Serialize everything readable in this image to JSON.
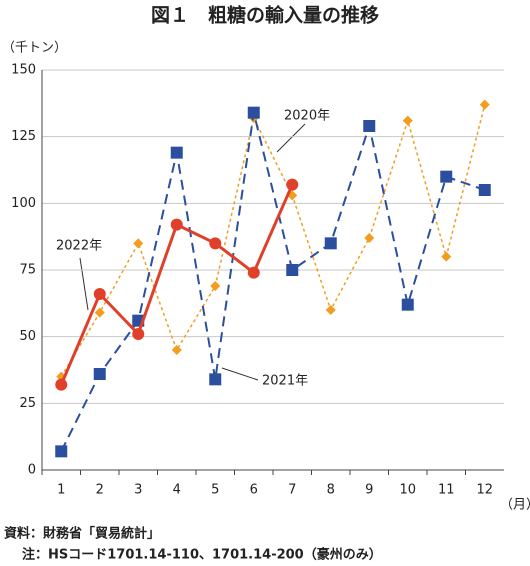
{
  "chart_data": {
    "type": "line",
    "title": "図１　粗糖の輸入量の推移",
    "y_unit": "（千トン）",
    "x_unit": "（月）",
    "categories": [
      1,
      2,
      3,
      4,
      5,
      6,
      7,
      8,
      9,
      10,
      11,
      12
    ],
    "ylim": [
      0,
      150
    ],
    "yticks": [
      0,
      25,
      50,
      75,
      100,
      125,
      150
    ],
    "grid": true,
    "series": [
      {
        "name": "2020年",
        "color": "#f39c1e",
        "style": "dotted",
        "marker": "diamond",
        "values": [
          35,
          59,
          85,
          45,
          69,
          132,
          103,
          60,
          87,
          131,
          80,
          137
        ]
      },
      {
        "name": "2021年",
        "color": "#2b4f9e",
        "style": "dashed",
        "marker": "square",
        "values": [
          7,
          36,
          56,
          119,
          34,
          134,
          75,
          85,
          129,
          62,
          110,
          105
        ]
      },
      {
        "name": "2022年",
        "color": "#e0402a",
        "style": "solid",
        "marker": "circle",
        "values": [
          32,
          66,
          51,
          92,
          85,
          74,
          107,
          null,
          null,
          null,
          null,
          null
        ]
      }
    ],
    "notes": [
      "資料：財務省「貿易統計」",
      "注：HSコード1701.14-110、1701.14-200（豪州のみ）"
    ]
  }
}
